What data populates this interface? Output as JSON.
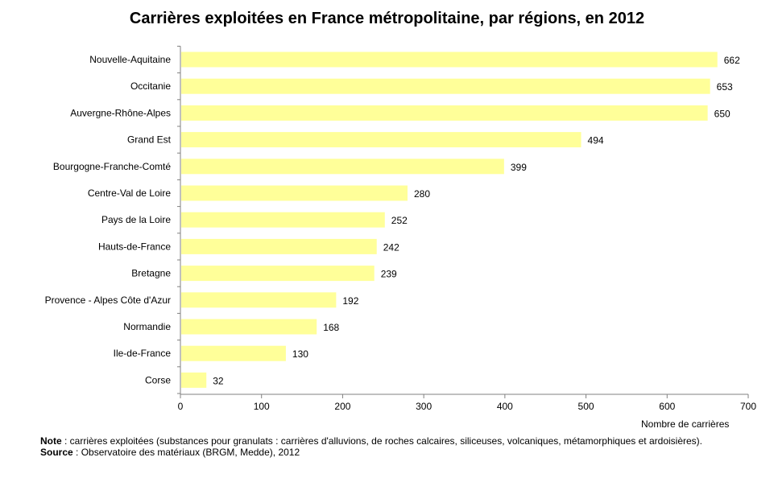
{
  "chart_data": {
    "type": "bar",
    "orientation": "horizontal",
    "title": "Carrières exploitées en France métropolitaine, par régions, en 2012",
    "xlabel": "Nombre de carrières",
    "ylabel": "",
    "xlim": [
      0,
      700
    ],
    "xticks": [
      0,
      100,
      200,
      300,
      400,
      500,
      600,
      700
    ],
    "grid": false,
    "categories": [
      "Nouvelle-Aquitaine",
      "Occitanie",
      "Auvergne-Rhône-Alpes",
      "Grand Est",
      "Bourgogne-Franche-Comté",
      "Centre-Val de Loire",
      "Pays de la Loire",
      "Hauts-de-France",
      "Bretagne",
      "Provence - Alpes Côte d'Azur",
      "Normandie",
      "Ile-de-France",
      "Corse"
    ],
    "values": [
      662,
      653,
      650,
      494,
      399,
      280,
      252,
      242,
      239,
      192,
      168,
      130,
      32
    ],
    "bar_color": "#ffff99"
  },
  "footer": {
    "note_label": "Note",
    "note_text": " : carrières exploitées (substances pour granulats  : carrières d'alluvions,  de roches calcaires, siliceuses, volcaniques,  métamorphiques  et ardoisières).",
    "source_label": "Source",
    "source_text": " : Observatoire  des matériaux (BRGM, Medde), 2012"
  }
}
